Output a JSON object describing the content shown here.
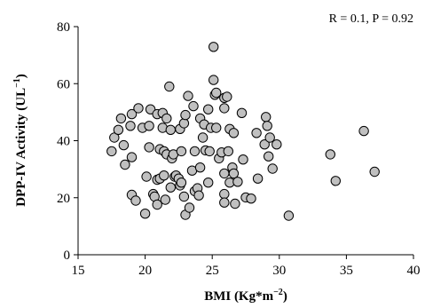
{
  "chart_data": {
    "type": "scatter",
    "xlabel": "BMI (Kg*m",
    "xlabel_sup": "−2",
    "xlabel_close": ")",
    "ylabel": "DPP-IV Activity (UL",
    "ylabel_sup": "−1",
    "ylabel_close": ")",
    "annotation": "R = 0.1, P = 0.92",
    "xlim": [
      15,
      40
    ],
    "ylim": [
      0,
      80
    ],
    "x_ticks": [
      15,
      20,
      25,
      30,
      35,
      40
    ],
    "y_ticks": [
      0,
      20,
      40,
      60,
      80
    ],
    "grid": false,
    "marker_fill": "#c0c0c0",
    "marker_edge": "#000000",
    "points": [
      {
        "x": 17.5,
        "y": 36.3
      },
      {
        "x": 17.7,
        "y": 41.1
      },
      {
        "x": 18.0,
        "y": 43.8
      },
      {
        "x": 18.2,
        "y": 47.8
      },
      {
        "x": 18.4,
        "y": 38.4
      },
      {
        "x": 18.5,
        "y": 31.6
      },
      {
        "x": 18.9,
        "y": 45.2
      },
      {
        "x": 19.0,
        "y": 34.2
      },
      {
        "x": 19.0,
        "y": 21.0
      },
      {
        "x": 19.3,
        "y": 19.0
      },
      {
        "x": 19.0,
        "y": 49.3
      },
      {
        "x": 19.5,
        "y": 51.4
      },
      {
        "x": 19.8,
        "y": 44.5
      },
      {
        "x": 20.0,
        "y": 14.4
      },
      {
        "x": 20.1,
        "y": 27.4
      },
      {
        "x": 20.3,
        "y": 37.7
      },
      {
        "x": 20.3,
        "y": 45.2
      },
      {
        "x": 20.4,
        "y": 51.0
      },
      {
        "x": 20.6,
        "y": 21.3
      },
      {
        "x": 20.7,
        "y": 20.4
      },
      {
        "x": 20.9,
        "y": 49.3
      },
      {
        "x": 20.9,
        "y": 26.3
      },
      {
        "x": 20.9,
        "y": 17.6
      },
      {
        "x": 21.1,
        "y": 37.0
      },
      {
        "x": 21.1,
        "y": 26.7
      },
      {
        "x": 21.3,
        "y": 49.7
      },
      {
        "x": 21.3,
        "y": 44.5
      },
      {
        "x": 21.4,
        "y": 36.3
      },
      {
        "x": 21.4,
        "y": 27.8
      },
      {
        "x": 21.5,
        "y": 19.3
      },
      {
        "x": 21.6,
        "y": 35.2
      },
      {
        "x": 21.6,
        "y": 47.8
      },
      {
        "x": 21.8,
        "y": 59.0
      },
      {
        "x": 21.9,
        "y": 43.8
      },
      {
        "x": 21.9,
        "y": 23.6
      },
      {
        "x": 22.0,
        "y": 33.8
      },
      {
        "x": 22.1,
        "y": 35.2
      },
      {
        "x": 22.2,
        "y": 27.4
      },
      {
        "x": 22.3,
        "y": 27.8
      },
      {
        "x": 22.5,
        "y": 26.7
      },
      {
        "x": 22.6,
        "y": 44.1
      },
      {
        "x": 22.6,
        "y": 24.3
      },
      {
        "x": 22.7,
        "y": 36.3
      },
      {
        "x": 22.7,
        "y": 25.3
      },
      {
        "x": 22.9,
        "y": 46.1
      },
      {
        "x": 22.9,
        "y": 20.4
      },
      {
        "x": 23.0,
        "y": 49.0
      },
      {
        "x": 23.0,
        "y": 14.0
      },
      {
        "x": 23.2,
        "y": 55.7
      },
      {
        "x": 23.3,
        "y": 16.5
      },
      {
        "x": 23.5,
        "y": 29.5
      },
      {
        "x": 23.6,
        "y": 52.1
      },
      {
        "x": 23.7,
        "y": 36.3
      },
      {
        "x": 23.7,
        "y": 22.3
      },
      {
        "x": 23.9,
        "y": 23.3
      },
      {
        "x": 24.0,
        "y": 20.8
      },
      {
        "x": 24.1,
        "y": 30.6
      },
      {
        "x": 24.1,
        "y": 47.8
      },
      {
        "x": 24.3,
        "y": 41.1
      },
      {
        "x": 24.4,
        "y": 45.7
      },
      {
        "x": 24.5,
        "y": 36.6
      },
      {
        "x": 24.7,
        "y": 25.3
      },
      {
        "x": 24.7,
        "y": 51.0
      },
      {
        "x": 24.8,
        "y": 36.3
      },
      {
        "x": 24.9,
        "y": 44.5
      },
      {
        "x": 25.1,
        "y": 72.9
      },
      {
        "x": 25.1,
        "y": 61.3
      },
      {
        "x": 25.2,
        "y": 56.1
      },
      {
        "x": 25.3,
        "y": 56.8
      },
      {
        "x": 25.3,
        "y": 44.5
      },
      {
        "x": 25.5,
        "y": 33.8
      },
      {
        "x": 25.7,
        "y": 35.9
      },
      {
        "x": 25.9,
        "y": 55.0
      },
      {
        "x": 25.9,
        "y": 51.4
      },
      {
        "x": 25.9,
        "y": 28.5
      },
      {
        "x": 25.9,
        "y": 21.3
      },
      {
        "x": 25.9,
        "y": 18.3
      },
      {
        "x": 26.1,
        "y": 55.4
      },
      {
        "x": 26.2,
        "y": 36.3
      },
      {
        "x": 26.3,
        "y": 25.3
      },
      {
        "x": 26.3,
        "y": 44.1
      },
      {
        "x": 26.5,
        "y": 30.6
      },
      {
        "x": 26.6,
        "y": 42.7
      },
      {
        "x": 26.6,
        "y": 28.5
      },
      {
        "x": 26.7,
        "y": 17.9
      },
      {
        "x": 26.9,
        "y": 25.6
      },
      {
        "x": 27.2,
        "y": 49.7
      },
      {
        "x": 27.3,
        "y": 33.4
      },
      {
        "x": 27.5,
        "y": 20.1
      },
      {
        "x": 27.9,
        "y": 19.7
      },
      {
        "x": 28.3,
        "y": 42.7
      },
      {
        "x": 28.4,
        "y": 26.7
      },
      {
        "x": 28.9,
        "y": 38.7
      },
      {
        "x": 29.0,
        "y": 48.3
      },
      {
        "x": 29.1,
        "y": 45.2
      },
      {
        "x": 29.2,
        "y": 34.5
      },
      {
        "x": 29.3,
        "y": 41.1
      },
      {
        "x": 29.5,
        "y": 30.2
      },
      {
        "x": 29.8,
        "y": 38.7
      },
      {
        "x": 30.7,
        "y": 13.7
      },
      {
        "x": 33.8,
        "y": 35.2
      },
      {
        "x": 34.2,
        "y": 25.9
      },
      {
        "x": 36.3,
        "y": 43.4
      },
      {
        "x": 37.1,
        "y": 29.1
      }
    ]
  }
}
